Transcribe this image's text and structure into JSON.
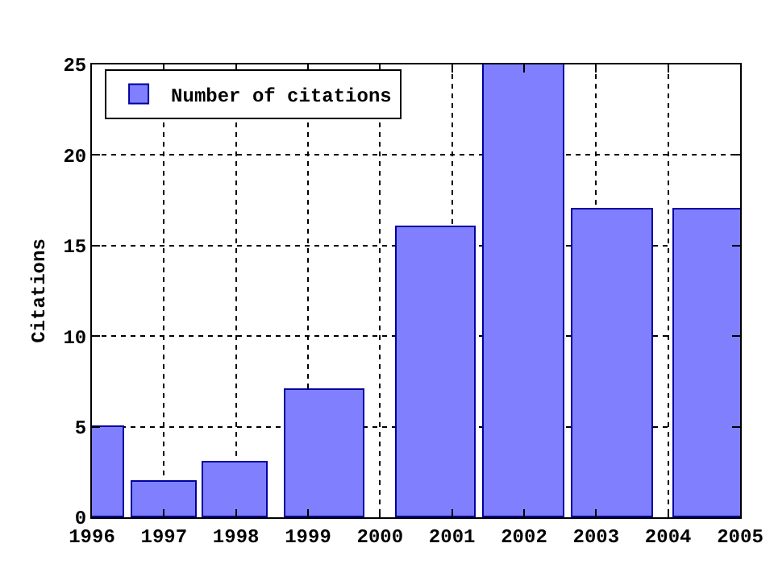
{
  "chart_data": {
    "type": "bar",
    "ylabel": "Citations",
    "x": [
      1996,
      1997,
      1998,
      1999.23,
      2000.78,
      2002,
      2003.24,
      2004.78
    ],
    "series": [
      {
        "name": "Number of citations",
        "color": "#8080ff",
        "values": [
          5,
          2,
          3,
          7,
          16,
          25,
          17,
          17
        ]
      }
    ],
    "xlim": [
      1996,
      2005
    ],
    "xticks": [
      1996,
      1997,
      1998,
      1999,
      2000,
      2001,
      2002,
      2003,
      2004,
      2005
    ],
    "ylim": [
      0,
      25
    ],
    "yticks": [
      0,
      5,
      10,
      15,
      20,
      25
    ],
    "grid": true,
    "legend": "top left"
  }
}
